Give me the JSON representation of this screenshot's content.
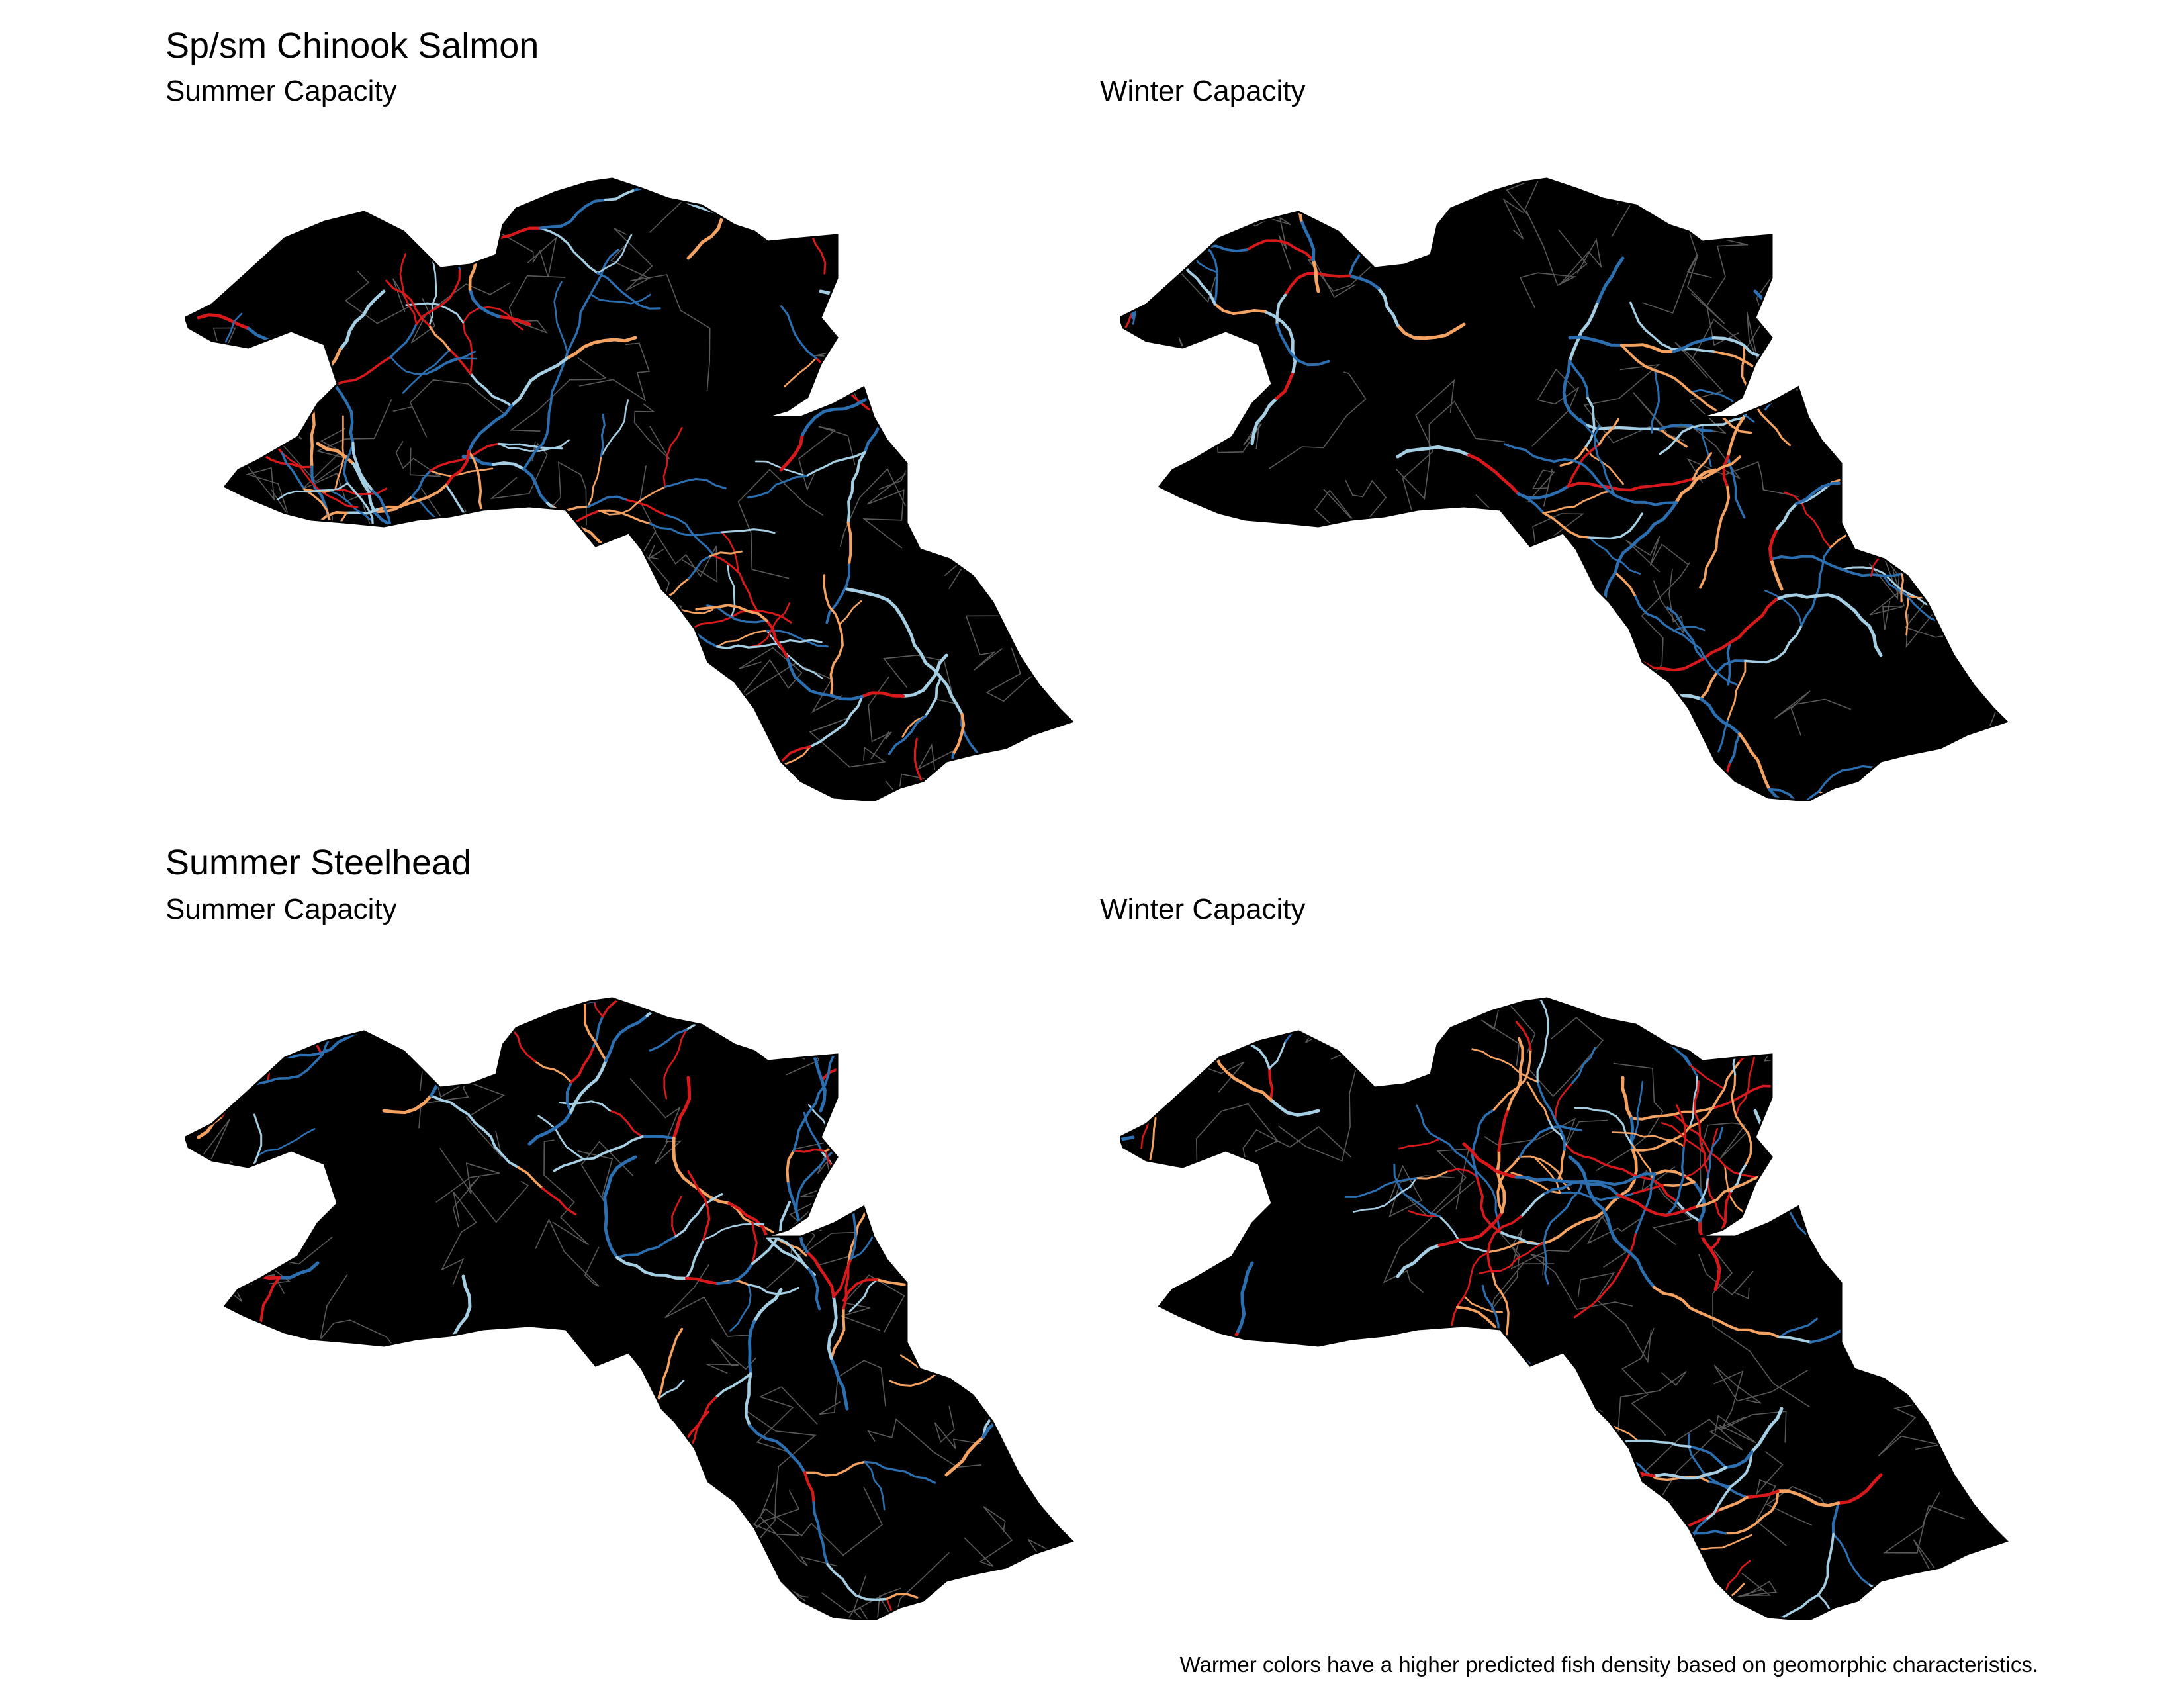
{
  "sections": [
    {
      "title": "Sp/sm Chinook Salmon",
      "panels": [
        {
          "subtitle": "Summer Capacity",
          "seed": 11,
          "mix": [
            0.22,
            0.18,
            0.28,
            0.32
          ]
        },
        {
          "subtitle": "Winter Capacity",
          "seed": 23,
          "mix": [
            0.16,
            0.24,
            0.22,
            0.38
          ]
        }
      ]
    },
    {
      "title": "Summer Steelhead",
      "panels": [
        {
          "subtitle": "Summer Capacity",
          "seed": 37,
          "mix": [
            0.24,
            0.24,
            0.22,
            0.3
          ]
        },
        {
          "subtitle": "Winter Capacity",
          "seed": 53,
          "mix": [
            0.26,
            0.22,
            0.22,
            0.3
          ]
        }
      ]
    }
  ],
  "caption": "Warmer colors have a higher predicted fish density based on geomorphic characteristics.",
  "colors": {
    "background": "#ffffff",
    "landmass": "#000000",
    "subbasin_lines": "#5a5a5a",
    "stream_palette": [
      "#d7191c",
      "#f4a261",
      "#a6cee3",
      "#2c6fb0"
    ]
  }
}
